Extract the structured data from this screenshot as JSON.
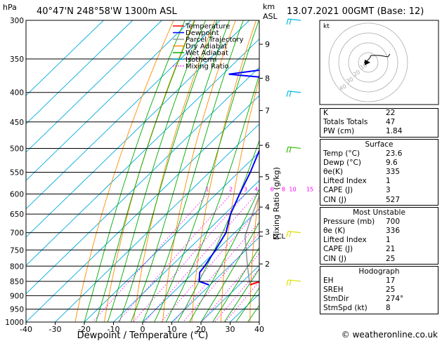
{
  "header": {
    "location": "40°47'N  248°58'W  1300m  ASL",
    "datetime": "13.07.2021  00GMT  (Base: 12)",
    "pressure_unit": "hPa",
    "height_unit_top": "km",
    "height_unit_bottom": "ASL"
  },
  "chart_data": {
    "type": "line",
    "subtype": "skew-t log-p diagram",
    "xlabel": "Dewpoint / Temperature (°C)",
    "ylabel": "hPa",
    "right_axis_label": "km ASL",
    "mixing_ratio_label": "Mixing Ratio (g/kg)",
    "x_ticks": [
      -40,
      -30,
      -20,
      -10,
      0,
      10,
      20,
      30,
      40
    ],
    "y_ticks": [
      300,
      350,
      400,
      450,
      500,
      550,
      600,
      650,
      700,
      750,
      800,
      850,
      900,
      950,
      1000
    ],
    "y_scale": "log",
    "xlim": [
      -40,
      40
    ],
    "ylim": [
      1000,
      300
    ],
    "km_ticks": [
      {
        "km": 2,
        "p": 793
      },
      {
        "km": 3,
        "p": 698
      },
      {
        "km": 4,
        "p": 632
      },
      {
        "km": 5,
        "p": 560
      },
      {
        "km": 6,
        "p": 494
      },
      {
        "km": 7,
        "p": 430
      },
      {
        "km": 8,
        "p": 378
      },
      {
        "km": 9,
        "p": 330
      }
    ],
    "lcl_label": "LCL",
    "lcl_pressure": 710,
    "mixing_ratio_values": [
      "1",
      "2",
      "3",
      "4",
      "6",
      "8",
      "10",
      "15",
      "20",
      "25"
    ],
    "mixing_ratio_nums": [
      1,
      2,
      3,
      4,
      6,
      8,
      10,
      15,
      20,
      25
    ],
    "legend": [
      {
        "name": "Temperature",
        "color": "#ff0000"
      },
      {
        "name": "Dewpoint",
        "color": "#0000ff"
      },
      {
        "name": "Parcel Trajectory",
        "color": "#999999"
      },
      {
        "name": "Dry Adiabat",
        "color": "#ff8c00"
      },
      {
        "name": "Wet Adiabat",
        "color": "#00aa00"
      },
      {
        "name": "Isotherm",
        "color": "#00aadd"
      },
      {
        "name": "Mixing Ratio",
        "color": "#ff00ff",
        "dotted": true
      }
    ],
    "series": [
      {
        "name": "Temperature",
        "color": "#ff0000",
        "points": [
          [
            862,
            23.6
          ],
          [
            850,
            26
          ],
          [
            820,
            28
          ],
          [
            800,
            27
          ],
          [
            750,
            23
          ],
          [
            700,
            18.5
          ],
          [
            650,
            14
          ],
          [
            600,
            9
          ],
          [
            550,
            4
          ],
          [
            500,
            -2.5
          ],
          [
            450,
            -9
          ],
          [
            400,
            -16
          ],
          [
            380,
            -18
          ],
          [
            350,
            -24
          ],
          [
            330,
            -28
          ],
          [
            310,
            -31
          ],
          [
            300,
            -33
          ]
        ]
      },
      {
        "name": "Dewpoint",
        "color": "#0000ff",
        "points": [
          [
            862,
            9.6
          ],
          [
            850,
            5
          ],
          [
            820,
            2
          ],
          [
            800,
            1.5
          ],
          [
            750,
            -0.5
          ],
          [
            700,
            -3
          ],
          [
            650,
            -8
          ],
          [
            600,
            -12
          ],
          [
            550,
            -16
          ],
          [
            510,
            -20
          ],
          [
            500,
            -21
          ],
          [
            480,
            -24
          ],
          [
            450,
            -28
          ],
          [
            410,
            -32
          ],
          [
            395,
            -35
          ],
          [
            385,
            -37
          ],
          [
            380,
            -36
          ],
          [
            372,
            -58
          ],
          [
            362,
            -43
          ],
          [
            350,
            -40
          ],
          [
            340,
            -31
          ],
          [
            330,
            -25
          ],
          [
            315,
            -28
          ],
          [
            305,
            -24
          ],
          [
            300,
            -50
          ]
        ]
      },
      {
        "name": "Parcel Trajectory",
        "color": "#999999",
        "points": [
          [
            862,
            23.6
          ],
          [
            800,
            16.2
          ],
          [
            710,
            4.8
          ],
          [
            650,
            -0.5
          ],
          [
            600,
            -5
          ],
          [
            550,
            -10
          ],
          [
            500,
            -16
          ],
          [
            450,
            -22
          ],
          [
            400,
            -29
          ],
          [
            350,
            -37
          ],
          [
            300,
            -45
          ]
        ]
      }
    ],
    "wind_barbs": [
      {
        "p": 300,
        "color": "#00bbdd"
      },
      {
        "p": 400,
        "color": "#00bbdd"
      },
      {
        "p": 500,
        "color": "#33bb00"
      },
      {
        "p": 700,
        "color": "#dddd00"
      },
      {
        "p": 850,
        "color": "#dddd00"
      }
    ],
    "hodograph": {
      "label": "kt",
      "ring_labels": [
        "10",
        "20",
        "30",
        "40"
      ],
      "trace_color": "#000000"
    }
  },
  "indices": {
    "general": [
      {
        "label": "K",
        "value": "22"
      },
      {
        "label": "Totals Totals",
        "value": "47"
      },
      {
        "label": "PW (cm)",
        "value": "1.84"
      }
    ],
    "surface": {
      "title": "Surface",
      "rows": [
        {
          "label": "Temp (°C)",
          "value": "23.6"
        },
        {
          "label": "Dewp (°C)",
          "value": "9.6"
        },
        {
          "label": "θe(K)",
          "value": "335"
        },
        {
          "label": "Lifted Index",
          "value": "1"
        },
        {
          "label": "CAPE (J)",
          "value": "3"
        },
        {
          "label": "CIN (J)",
          "value": "527"
        }
      ]
    },
    "most_unstable": {
      "title": "Most Unstable",
      "rows": [
        {
          "label": "Pressure (mb)",
          "value": "700"
        },
        {
          "label": "θe (K)",
          "value": "336"
        },
        {
          "label": "Lifted Index",
          "value": "1"
        },
        {
          "label": "CAPE (J)",
          "value": "21"
        },
        {
          "label": "CIN (J)",
          "value": "25"
        }
      ]
    },
    "hodograph": {
      "title": "Hodograph",
      "rows": [
        {
          "label": "EH",
          "value": "17"
        },
        {
          "label": "SREH",
          "value": "25"
        },
        {
          "label": "StmDir",
          "value": "274°"
        },
        {
          "label": "StmSpd (kt)",
          "value": "8"
        }
      ]
    }
  },
  "footer": {
    "copyright": "© weatheronline.co.uk"
  }
}
